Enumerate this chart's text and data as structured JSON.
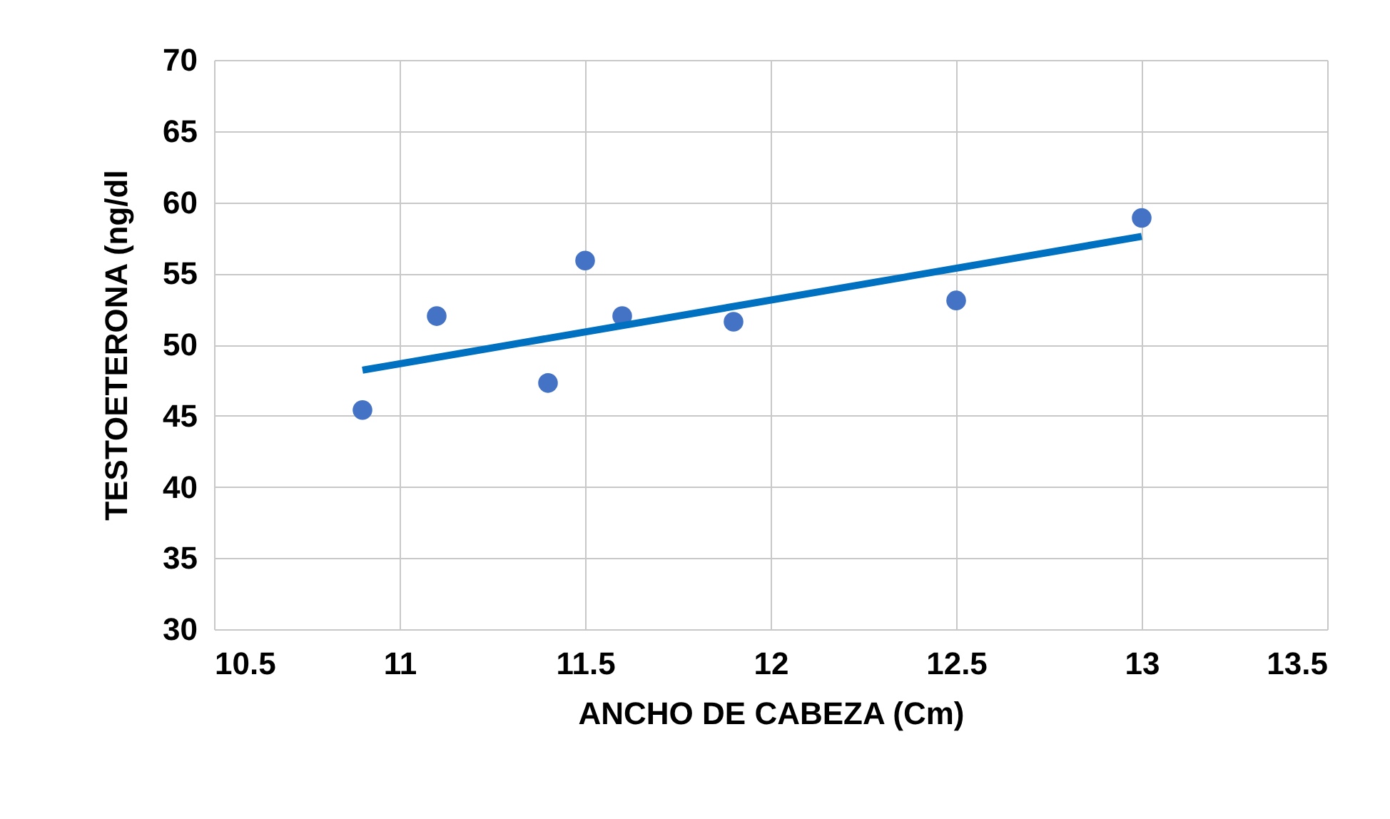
{
  "chart_data": {
    "type": "scatter",
    "xlabel": "ANCHO DE CABEZA (Cm)",
    "ylabel": "TESTOETERONA  (ng/dl",
    "xlim": [
      10.5,
      13.5
    ],
    "xticks": [
      10.5,
      11,
      11.5,
      12,
      12.5,
      13,
      13.5
    ],
    "ylim": [
      30,
      70
    ],
    "yticks": [
      30,
      35,
      40,
      45,
      50,
      55,
      60,
      65,
      70
    ],
    "grid": true,
    "marker": "circle",
    "series": [
      {
        "color": "#4472c4",
        "x": [
          10.9,
          11.1,
          11.4,
          11.5,
          11.6,
          11.9,
          12.5,
          13
        ],
        "values": [
          45.4,
          52,
          47.3,
          55.9,
          52,
          51.6,
          53.1,
          58.9
        ]
      },
      {
        "type": "line",
        "marker": "none",
        "color": "#0070c0",
        "x": [
          10.9,
          13
        ],
        "values": [
          48.2,
          57.6
        ]
      }
    ]
  }
}
